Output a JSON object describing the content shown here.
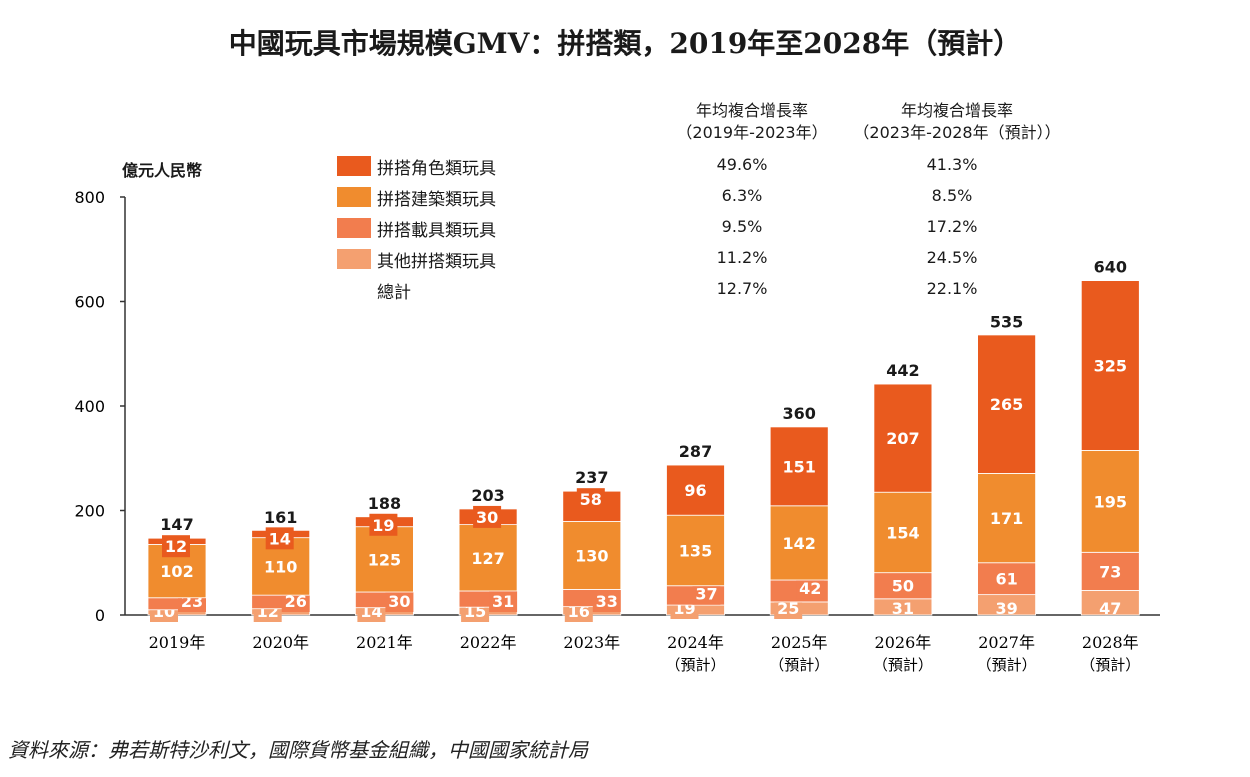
{
  "title": "中國玩具市場規模GMV：拼搭類，2019年至2028年（預計）",
  "unit_label": "億元人民幣",
  "source": "資料來源：弗若斯特沙利文，國際貨幣基金組織，中國國家統計局",
  "legend": [
    {
      "label": "拼搭角色類玩具",
      "color": "#E95A1E"
    },
    {
      "label": "拼搭建築類玩具",
      "color": "#F08C2E"
    },
    {
      "label": "拼搭載具類玩具",
      "color": "#F27D4E"
    },
    {
      "label": "其他拼搭類玩具",
      "color": "#F4A070"
    },
    {
      "label": "總計",
      "color": ""
    }
  ],
  "cagr": {
    "col1_head": [
      "年均複合增長率",
      "（2019年-2023年）"
    ],
    "col2_head": [
      "年均複合增長率",
      "（2023年-2028年（預計））"
    ],
    "col1": [
      "49.6%",
      "6.3%",
      "9.5%",
      "11.2%",
      "12.7%"
    ],
    "col2": [
      "41.3%",
      "8.5%",
      "17.2%",
      "24.5%",
      "22.1%"
    ]
  },
  "chart_data": {
    "type": "bar",
    "stacked": true,
    "categories": [
      "2019年",
      "2020年",
      "2021年",
      "2022年",
      "2023年",
      "2024年",
      "2025年",
      "2026年",
      "2027年",
      "2028年"
    ],
    "category_sub": [
      "",
      "",
      "",
      "",
      "",
      "（預計）",
      "（預計）",
      "（預計）",
      "（預計）",
      "（預計）"
    ],
    "series": [
      {
        "name": "其他拼搭類玩具",
        "color": "#F4A070",
        "values": [
          10,
          12,
          14,
          15,
          16,
          19,
          25,
          31,
          39,
          47
        ]
      },
      {
        "name": "拼搭載具類玩具",
        "color": "#F27D4E",
        "values": [
          23,
          26,
          30,
          31,
          33,
          37,
          42,
          50,
          61,
          73
        ]
      },
      {
        "name": "拼搭建築類玩具",
        "color": "#F08C2E",
        "values": [
          102,
          110,
          125,
          127,
          130,
          135,
          142,
          154,
          171,
          195
        ]
      },
      {
        "name": "拼搭角色類玩具",
        "color": "#E95A1E",
        "values": [
          12,
          14,
          19,
          30,
          58,
          96,
          151,
          207,
          265,
          325
        ]
      }
    ],
    "totals": [
      147,
      161,
      188,
      203,
      237,
      287,
      360,
      442,
      535,
      640
    ],
    "ylim": [
      0,
      800
    ],
    "yticks": [
      0,
      200,
      400,
      600,
      800
    ]
  }
}
